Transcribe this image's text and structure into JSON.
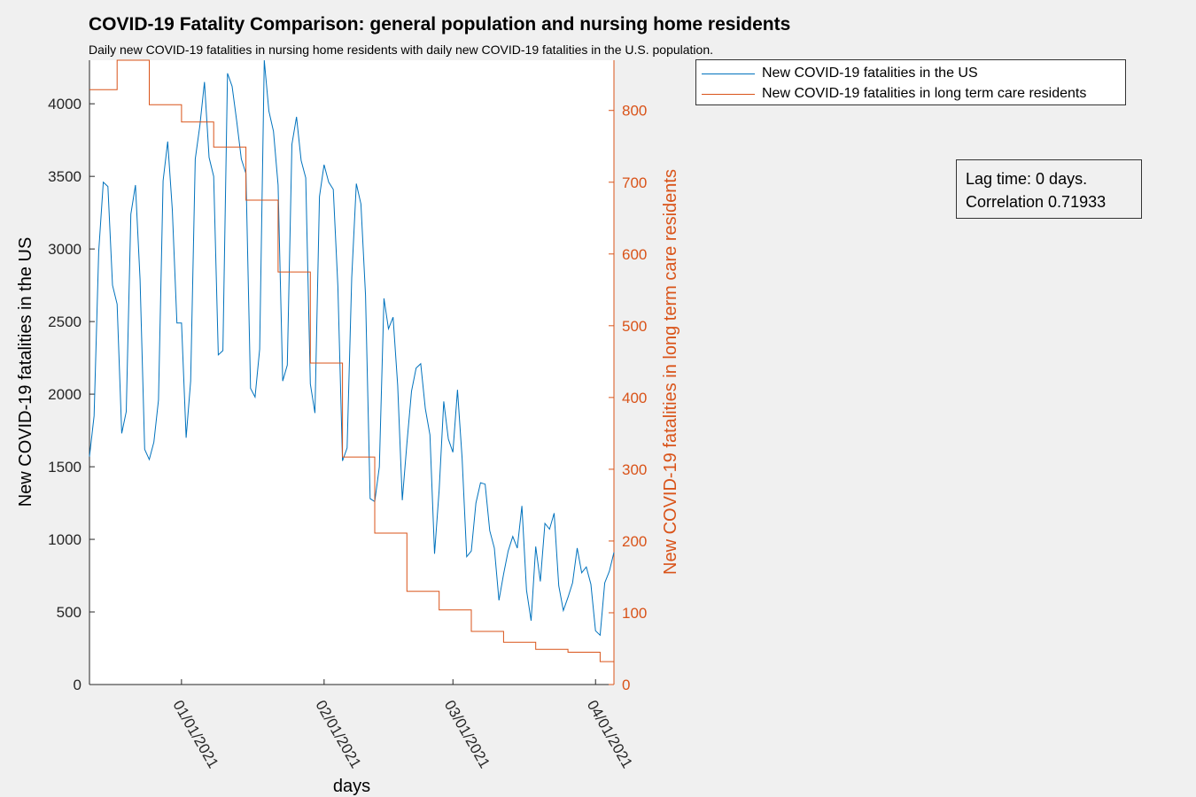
{
  "chart_data": {
    "type": "line",
    "title": "COVID-19 Fatality Comparison: general population and nursing home residents",
    "subtitle": "Daily new COVID-19 fatalities in nursing home residents with daily new COVID-19 fatalities in the U.S. population.",
    "xlabel": "days",
    "ylabel_left": "New COVID-19 fatalities in the US",
    "ylabel_right": "New COVID-19 fatalities in long term care residents",
    "ylim_left": [
      0,
      4300
    ],
    "ylim_right": [
      0,
      870
    ],
    "yticks_left": [
      0,
      500,
      1000,
      1500,
      2000,
      2500,
      3000,
      3500,
      4000
    ],
    "yticks_right": [
      0,
      100,
      200,
      300,
      400,
      500,
      600,
      700,
      800
    ],
    "xlim_days_from_2020_12_12": [
      0,
      114
    ],
    "xticks": [
      {
        "label": "01/01/2021",
        "day": 20
      },
      {
        "label": "02/01/2021",
        "day": 51
      },
      {
        "label": "03/01/2021",
        "day": 79
      },
      {
        "label": "04/01/2021",
        "day": 110
      }
    ],
    "colors": {
      "us": "#0072BD",
      "ltc": "#D95319"
    },
    "series": [
      {
        "name": "New COVID-19 fatalities in the US",
        "axis": "left",
        "values": [
          1570,
          1850,
          2980,
          3460,
          3430,
          2750,
          2620,
          1730,
          1880,
          3240,
          3440,
          2790,
          1620,
          1550,
          1670,
          1960,
          3470,
          3740,
          3270,
          2490,
          2490,
          1700,
          2090,
          3620,
          3850,
          4150,
          3630,
          3500,
          2270,
          2300,
          4210,
          4120,
          3880,
          3620,
          3520,
          2040,
          1980,
          2310,
          4300,
          3950,
          3810,
          3440,
          2090,
          2200,
          3720,
          3910,
          3610,
          3490,
          2070,
          1870,
          3360,
          3580,
          3460,
          3410,
          2740,
          1540,
          1630,
          2800,
          3450,
          3310,
          2680,
          1280,
          1260,
          1500,
          2660,
          2450,
          2530,
          2060,
          1270,
          1660,
          2020,
          2180,
          2210,
          1900,
          1720,
          900,
          1340,
          1950,
          1690,
          1600,
          2030,
          1560,
          880,
          920,
          1250,
          1390,
          1380,
          1060,
          940,
          580,
          760,
          920,
          1020,
          940,
          1230,
          650,
          440,
          950,
          710,
          1110,
          1070,
          1180,
          680,
          510,
          600,
          700,
          940,
          770,
          810,
          690,
          370,
          340,
          700,
          780,
          910
        ]
      },
      {
        "name": "New COVID-19 fatalities in long term care residents",
        "axis": "right",
        "steps": [
          {
            "from": 0,
            "to": 6,
            "value": 829
          },
          {
            "from": 6,
            "to": 13,
            "value": 890
          },
          {
            "from": 13,
            "to": 20,
            "value": 808
          },
          {
            "from": 20,
            "to": 27,
            "value": 784
          },
          {
            "from": 27,
            "to": 34,
            "value": 749
          },
          {
            "from": 34,
            "to": 41,
            "value": 675
          },
          {
            "from": 41,
            "to": 48,
            "value": 575
          },
          {
            "from": 48,
            "to": 55,
            "value": 448
          },
          {
            "from": 55,
            "to": 62,
            "value": 317
          },
          {
            "from": 62,
            "to": 69,
            "value": 211
          },
          {
            "from": 69,
            "to": 76,
            "value": 130
          },
          {
            "from": 76,
            "to": 83,
            "value": 104
          },
          {
            "from": 83,
            "to": 90,
            "value": 74
          },
          {
            "from": 90,
            "to": 97,
            "value": 59
          },
          {
            "from": 97,
            "to": 104,
            "value": 49
          },
          {
            "from": 104,
            "to": 111,
            "value": 45
          },
          {
            "from": 111,
            "to": 114,
            "value": 32
          }
        ]
      }
    ],
    "legend_position": "top-right, outside axes"
  },
  "annotation": {
    "lag_text": "Lag time: 0 days.",
    "correlation_text": "Correlation 0.71933"
  }
}
